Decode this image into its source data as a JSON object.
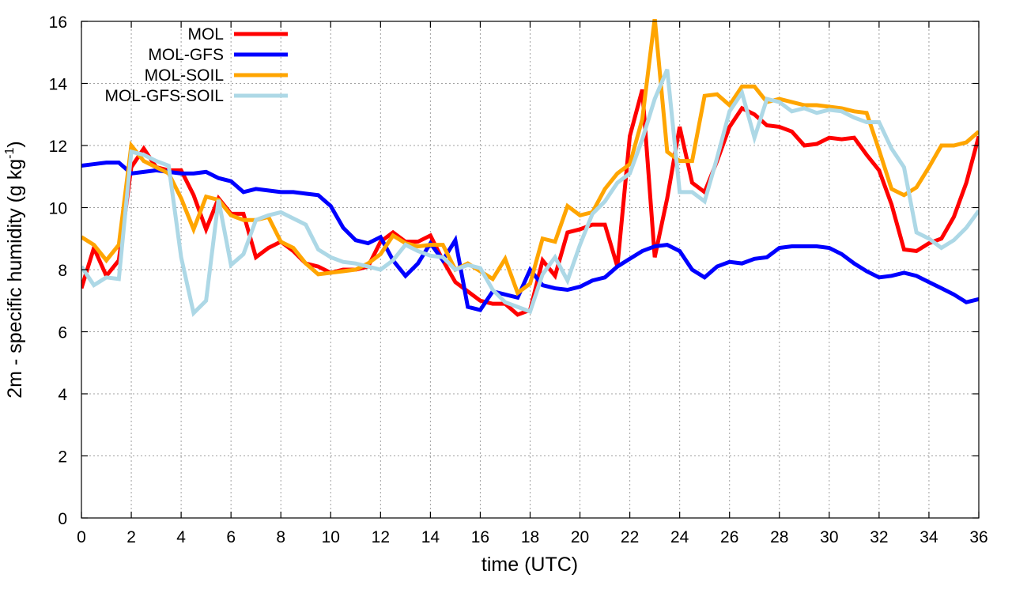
{
  "chart_data": {
    "type": "line",
    "title": "",
    "xlabel": "time (UTC)",
    "ylabel": {
      "main": "2m - specific humidity (g kg",
      "superscript": "-1",
      "closing": ")"
    },
    "xlim": [
      0,
      36
    ],
    "ylim": [
      0,
      16
    ],
    "xticks": [
      0,
      2,
      4,
      6,
      8,
      10,
      12,
      14,
      16,
      18,
      20,
      22,
      24,
      26,
      28,
      30,
      32,
      34,
      36
    ],
    "yticks": [
      0,
      2,
      4,
      6,
      8,
      10,
      12,
      14,
      16
    ],
    "grid": true,
    "legend_position": "top-left",
    "series": [
      {
        "name": "MOL",
        "color": "#ff0000",
        "x": [
          0,
          0.5,
          1,
          1.5,
          2,
          2.5,
          3,
          3.5,
          4,
          4.5,
          5,
          5.5,
          6,
          6.5,
          7,
          7.5,
          8,
          8.5,
          9,
          9.5,
          10,
          10.5,
          11,
          11.5,
          12,
          12.5,
          13,
          13.5,
          14,
          14.5,
          15,
          15.5,
          16,
          16.5,
          17,
          17.5,
          18,
          18.5,
          19,
          19.5,
          20,
          20.5,
          21,
          21.5,
          22,
          22.5,
          23,
          23.5,
          24,
          24.5,
          25,
          25.5,
          26,
          26.5,
          27,
          27.5,
          28,
          28.5,
          29,
          29.5,
          30,
          30.5,
          31,
          31.5,
          32,
          32.5,
          33,
          33.5,
          34,
          34.5,
          35,
          35.5,
          36
        ],
        "values": [
          7.4,
          8.7,
          7.8,
          8.3,
          11.3,
          11.9,
          11.3,
          11.2,
          11.2,
          10.4,
          9.3,
          10.3,
          9.8,
          9.8,
          8.4,
          8.7,
          8.9,
          8.6,
          8.2,
          8.1,
          7.9,
          8.0,
          8.0,
          8.1,
          8.9,
          9.2,
          8.9,
          8.9,
          9.1,
          8.3,
          7.6,
          7.3,
          7.0,
          6.9,
          6.9,
          6.55,
          6.7,
          8.3,
          7.8,
          9.2,
          9.3,
          9.45,
          9.45,
          8.1,
          12.3,
          13.8,
          8.4,
          10.3,
          12.6,
          10.8,
          10.5,
          11.5,
          12.6,
          13.2,
          13.0,
          12.65,
          12.6,
          12.45,
          12.0,
          12.05,
          12.25,
          12.2,
          12.25,
          11.7,
          11.2,
          10.1,
          8.65,
          8.6,
          8.85,
          9.0,
          9.7,
          10.8,
          12.3
        ]
      },
      {
        "name": "MOL-GFS",
        "color": "#0000ff",
        "x": [
          0,
          0.5,
          1,
          1.5,
          2,
          2.5,
          3,
          3.5,
          4,
          4.5,
          5,
          5.5,
          6,
          6.5,
          7,
          7.5,
          8,
          8.5,
          9,
          9.5,
          10,
          10.5,
          11,
          11.5,
          12,
          12.5,
          13,
          13.5,
          14,
          14.5,
          15,
          15.5,
          16,
          16.5,
          17,
          17.5,
          18,
          18.5,
          19,
          19.5,
          20,
          20.5,
          21,
          21.5,
          22,
          22.5,
          23,
          23.5,
          24,
          24.5,
          25,
          25.5,
          26,
          26.5,
          27,
          27.5,
          28,
          28.5,
          29,
          29.5,
          30,
          30.5,
          31,
          31.5,
          32,
          32.5,
          33,
          33.5,
          34,
          34.5,
          35,
          35.5,
          36
        ],
        "values": [
          11.35,
          11.4,
          11.45,
          11.45,
          11.1,
          11.15,
          11.2,
          11.15,
          11.1,
          11.1,
          11.15,
          10.95,
          10.85,
          10.5,
          10.6,
          10.55,
          10.5,
          10.5,
          10.45,
          10.4,
          10.05,
          9.35,
          8.95,
          8.85,
          9.05,
          8.3,
          7.8,
          8.2,
          8.85,
          8.3,
          8.95,
          6.8,
          6.7,
          7.3,
          7.2,
          7.1,
          8.0,
          7.5,
          7.4,
          7.35,
          7.45,
          7.65,
          7.75,
          8.1,
          8.35,
          8.6,
          8.75,
          8.8,
          8.6,
          8.0,
          7.75,
          8.1,
          8.25,
          8.2,
          8.35,
          8.4,
          8.7,
          8.75,
          8.75,
          8.75,
          8.7,
          8.5,
          8.2,
          7.95,
          7.75,
          7.8,
          7.9,
          7.8,
          7.6,
          7.4,
          7.2,
          6.95,
          7.05
        ]
      },
      {
        "name": "MOL-SOIL",
        "color": "#ffa500",
        "x": [
          0,
          0.5,
          1,
          1.5,
          2,
          2.5,
          3,
          3.5,
          4,
          4.5,
          5,
          5.5,
          6,
          6.5,
          7,
          7.5,
          8,
          8.5,
          9,
          9.5,
          10,
          10.5,
          11,
          11.5,
          12,
          12.5,
          13,
          13.5,
          14,
          14.5,
          15,
          15.5,
          16,
          16.5,
          17,
          17.5,
          18,
          18.5,
          19,
          19.5,
          20,
          20.5,
          21,
          21.5,
          22,
          22.5,
          23,
          23.5,
          24,
          24.5,
          25,
          25.5,
          26,
          26.5,
          27,
          27.5,
          28,
          28.5,
          29,
          29.5,
          30,
          30.5,
          31,
          31.5,
          32,
          32.5,
          33,
          33.5,
          34,
          34.5,
          35,
          35.5,
          36
        ],
        "values": [
          9.05,
          8.8,
          8.3,
          8.8,
          12.0,
          11.5,
          11.3,
          11.1,
          10.3,
          9.3,
          10.35,
          10.25,
          9.75,
          9.6,
          9.6,
          9.7,
          8.9,
          8.7,
          8.2,
          7.85,
          7.9,
          7.95,
          8.0,
          8.2,
          8.5,
          9.1,
          8.85,
          8.75,
          8.8,
          8.8,
          8.0,
          8.2,
          7.95,
          7.7,
          8.35,
          7.25,
          7.55,
          9.0,
          8.9,
          10.05,
          9.75,
          9.85,
          10.6,
          11.1,
          11.4,
          12.85,
          16.1,
          11.8,
          11.5,
          11.5,
          13.6,
          13.65,
          13.3,
          13.9,
          13.9,
          13.4,
          13.5,
          13.4,
          13.3,
          13.3,
          13.25,
          13.2,
          13.1,
          13.05,
          11.85,
          10.6,
          10.4,
          10.65,
          11.3,
          12.0,
          12.0,
          12.1,
          12.45
        ]
      },
      {
        "name": "MOL-GFS-SOIL",
        "color": "#add8e6",
        "x": [
          0,
          0.5,
          1,
          1.5,
          2,
          2.5,
          3,
          3.5,
          4,
          4.5,
          5,
          5.5,
          6,
          6.5,
          7,
          7.5,
          8,
          8.5,
          9,
          9.5,
          10,
          10.5,
          11,
          11.5,
          12,
          12.5,
          13,
          13.5,
          14,
          14.5,
          15,
          15.5,
          16,
          16.5,
          17,
          17.5,
          18,
          18.5,
          19,
          19.5,
          20,
          20.5,
          21,
          21.5,
          22,
          22.5,
          23,
          23.5,
          24,
          24.5,
          25,
          25.5,
          26,
          26.5,
          27,
          27.5,
          28,
          28.5,
          29,
          29.5,
          30,
          30.5,
          31,
          31.5,
          32,
          32.5,
          33,
          33.5,
          34,
          34.5,
          35,
          35.5,
          36
        ],
        "values": [
          8.1,
          7.5,
          7.75,
          7.7,
          11.8,
          11.7,
          11.5,
          11.35,
          8.4,
          6.6,
          7.0,
          10.25,
          8.15,
          8.5,
          9.6,
          9.75,
          9.85,
          9.65,
          9.45,
          8.65,
          8.4,
          8.25,
          8.2,
          8.1,
          8.0,
          8.3,
          8.8,
          8.6,
          8.45,
          8.4,
          8.0,
          8.15,
          8.05,
          7.35,
          6.95,
          6.8,
          6.65,
          7.85,
          8.4,
          7.65,
          8.8,
          9.8,
          10.2,
          10.8,
          11.1,
          12.2,
          13.5,
          14.45,
          10.5,
          10.5,
          10.2,
          11.6,
          13.1,
          13.7,
          12.25,
          13.5,
          13.4,
          13.1,
          13.2,
          13.05,
          13.15,
          13.1,
          12.9,
          12.75,
          12.75,
          11.9,
          11.3,
          9.2,
          9.0,
          8.7,
          8.95,
          9.35,
          9.9
        ]
      }
    ]
  }
}
